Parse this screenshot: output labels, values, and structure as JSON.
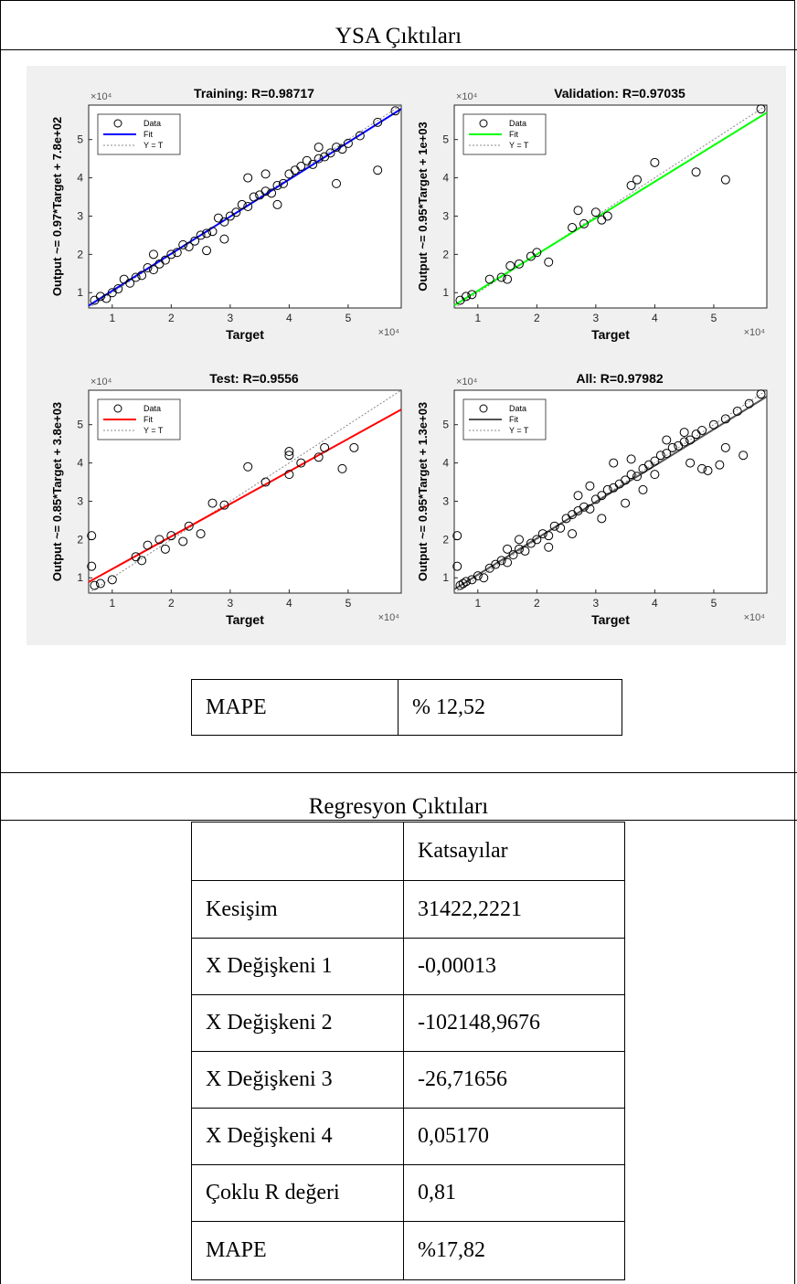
{
  "sections": {
    "ysa_title": "YSA Çıktıları",
    "regresyon_title": "Regresyon Çıktıları"
  },
  "ysa_mape": {
    "label": "MAPE",
    "value": "% 12,52"
  },
  "regresyon_table": {
    "header": [
      "",
      "Katsayılar"
    ],
    "rows": [
      [
        "Kesişim",
        "31422,2221"
      ],
      [
        "X Değişkeni 1",
        "-0,00013"
      ],
      [
        "X Değişkeni 2",
        "-102148,9676"
      ],
      [
        "X Değişkeni 3",
        "-26,71656"
      ],
      [
        "X Değişkeni 4",
        "0,05170"
      ],
      [
        "Çoklu R değeri",
        "0,81"
      ],
      [
        "MAPE",
        "%17,82"
      ]
    ]
  },
  "chart_data": [
    {
      "type": "scatter",
      "title": "Training: R=0.98717",
      "xlabel": "Target",
      "ylabel": "Output ~= 0.97*Target + 7.8e+02",
      "axis_multiplier": "×10⁴",
      "xlim": [
        0.6,
        5.9
      ],
      "ylim": [
        0.6,
        5.9
      ],
      "xticks": [
        1,
        2,
        3,
        4,
        5
      ],
      "yticks": [
        1,
        2,
        3,
        4,
        5
      ],
      "fit": {
        "slope": 0.97,
        "intercept": 0.078,
        "color": "#0000ff"
      },
      "legend": [
        "Data",
        "Fit",
        "Y = T"
      ],
      "legend_position": "top-left",
      "points": [
        [
          0.7,
          0.8
        ],
        [
          0.8,
          0.9
        ],
        [
          0.9,
          0.85
        ],
        [
          1.0,
          1.0
        ],
        [
          1.1,
          1.1
        ],
        [
          1.2,
          1.35
        ],
        [
          1.3,
          1.25
        ],
        [
          1.4,
          1.4
        ],
        [
          1.5,
          1.45
        ],
        [
          1.6,
          1.65
        ],
        [
          1.7,
          1.6
        ],
        [
          1.8,
          1.75
        ],
        [
          1.9,
          1.85
        ],
        [
          2.0,
          2.0
        ],
        [
          2.1,
          2.05
        ],
        [
          2.2,
          2.25
        ],
        [
          2.3,
          2.2
        ],
        [
          2.4,
          2.35
        ],
        [
          2.5,
          2.5
        ],
        [
          2.6,
          2.55
        ],
        [
          2.7,
          2.6
        ],
        [
          2.8,
          2.95
        ],
        [
          2.9,
          2.85
        ],
        [
          3.0,
          3.0
        ],
        [
          3.1,
          3.1
        ],
        [
          3.2,
          3.3
        ],
        [
          3.3,
          3.25
        ],
        [
          3.4,
          3.5
        ],
        [
          3.5,
          3.55
        ],
        [
          3.6,
          3.65
        ],
        [
          3.7,
          3.6
        ],
        [
          3.8,
          3.8
        ],
        [
          3.9,
          3.85
        ],
        [
          4.0,
          4.1
        ],
        [
          4.1,
          4.2
        ],
        [
          4.2,
          4.3
        ],
        [
          4.3,
          4.45
        ],
        [
          4.4,
          4.35
        ],
        [
          4.5,
          4.5
        ],
        [
          4.6,
          4.55
        ],
        [
          4.7,
          4.65
        ],
        [
          4.8,
          4.8
        ],
        [
          4.9,
          4.75
        ],
        [
          5.0,
          4.9
        ],
        [
          5.2,
          5.1
        ],
        [
          5.5,
          5.45
        ],
        [
          5.8,
          5.75
        ],
        [
          1.7,
          2.0
        ],
        [
          2.6,
          2.1
        ],
        [
          3.3,
          4.0
        ],
        [
          3.6,
          4.1
        ],
        [
          3.8,
          3.3
        ],
        [
          4.5,
          4.8
        ],
        [
          4.8,
          3.85
        ],
        [
          5.5,
          4.2
        ],
        [
          2.9,
          2.4
        ]
      ]
    },
    {
      "type": "scatter",
      "title": "Validation: R=0.97035",
      "xlabel": "Target",
      "ylabel": "Output ~= 0.95*Target + 1e+03",
      "axis_multiplier": "×10⁴",
      "xlim": [
        0.6,
        5.9
      ],
      "ylim": [
        0.6,
        5.9
      ],
      "xticks": [
        1,
        2,
        3,
        4,
        5
      ],
      "yticks": [
        1,
        2,
        3,
        4,
        5
      ],
      "fit": {
        "slope": 0.95,
        "intercept": 0.1,
        "color": "#00ff00"
      },
      "legend": [
        "Data",
        "Fit",
        "Y = T"
      ],
      "legend_position": "top-left",
      "points": [
        [
          0.7,
          0.8
        ],
        [
          0.8,
          0.9
        ],
        [
          0.9,
          0.95
        ],
        [
          1.2,
          1.35
        ],
        [
          1.4,
          1.4
        ],
        [
          1.5,
          1.35
        ],
        [
          1.55,
          1.7
        ],
        [
          1.7,
          1.75
        ],
        [
          1.9,
          1.95
        ],
        [
          2.0,
          2.05
        ],
        [
          2.2,
          1.8
        ],
        [
          2.6,
          2.7
        ],
        [
          2.7,
          3.15
        ],
        [
          2.8,
          2.8
        ],
        [
          3.0,
          3.1
        ],
        [
          3.1,
          2.9
        ],
        [
          3.2,
          3.0
        ],
        [
          3.6,
          3.8
        ],
        [
          3.7,
          3.95
        ],
        [
          4.0,
          4.4
        ],
        [
          4.7,
          4.15
        ],
        [
          5.2,
          3.95
        ],
        [
          5.8,
          5.8
        ]
      ]
    },
    {
      "type": "scatter",
      "title": "Test: R=0.9556",
      "xlabel": "Target",
      "ylabel": "Output ~= 0.85*Target + 3.8e+03",
      "axis_multiplier": "×10⁴",
      "xlim": [
        0.6,
        5.9
      ],
      "ylim": [
        0.6,
        5.9
      ],
      "xticks": [
        1,
        2,
        3,
        4,
        5
      ],
      "yticks": [
        1,
        2,
        3,
        4,
        5
      ],
      "fit": {
        "slope": 0.85,
        "intercept": 0.38,
        "color": "#ff0000"
      },
      "legend": [
        "Data",
        "Fit",
        "Y = T"
      ],
      "legend_position": "top-left",
      "points": [
        [
          0.65,
          2.1
        ],
        [
          0.65,
          1.3
        ],
        [
          0.7,
          0.8
        ],
        [
          0.8,
          0.85
        ],
        [
          1.0,
          0.95
        ],
        [
          1.4,
          1.55
        ],
        [
          1.5,
          1.45
        ],
        [
          1.6,
          1.85
        ],
        [
          1.8,
          2.0
        ],
        [
          1.9,
          1.75
        ],
        [
          2.0,
          2.1
        ],
        [
          2.2,
          1.95
        ],
        [
          2.3,
          2.35
        ],
        [
          2.5,
          2.15
        ],
        [
          2.7,
          2.95
        ],
        [
          2.9,
          2.9
        ],
        [
          3.3,
          3.9
        ],
        [
          3.6,
          3.5
        ],
        [
          4.0,
          4.2
        ],
        [
          4.0,
          3.7
        ],
        [
          4.0,
          4.3
        ],
        [
          4.2,
          4.0
        ],
        [
          4.5,
          4.15
        ],
        [
          4.6,
          4.4
        ],
        [
          4.9,
          3.85
        ],
        [
          5.1,
          4.4
        ]
      ]
    },
    {
      "type": "scatter",
      "title": "All: R=0.97982",
      "xlabel": "Target",
      "ylabel": "Output ~= 0.95*Target + 1.3e+03",
      "axis_multiplier": "×10⁴",
      "xlim": [
        0.6,
        5.9
      ],
      "ylim": [
        0.6,
        5.9
      ],
      "xticks": [
        1,
        2,
        3,
        4,
        5
      ],
      "yticks": [
        1,
        2,
        3,
        4,
        5
      ],
      "fit": {
        "slope": 0.95,
        "intercept": 0.13,
        "color": "#555555"
      },
      "legend": [
        "Data",
        "Fit",
        "Y = T"
      ],
      "legend_position": "top-left",
      "points": [
        [
          0.65,
          2.1
        ],
        [
          0.65,
          1.3
        ],
        [
          0.7,
          0.8
        ],
        [
          0.75,
          0.85
        ],
        [
          0.8,
          0.9
        ],
        [
          0.9,
          0.95
        ],
        [
          1.0,
          1.05
        ],
        [
          1.1,
          1.0
        ],
        [
          1.2,
          1.25
        ],
        [
          1.3,
          1.35
        ],
        [
          1.4,
          1.45
        ],
        [
          1.5,
          1.4
        ],
        [
          1.6,
          1.6
        ],
        [
          1.7,
          1.75
        ],
        [
          1.8,
          1.7
        ],
        [
          1.9,
          1.9
        ],
        [
          2.0,
          2.0
        ],
        [
          2.1,
          2.15
        ],
        [
          2.2,
          2.1
        ],
        [
          2.3,
          2.35
        ],
        [
          2.4,
          2.3
        ],
        [
          2.5,
          2.55
        ],
        [
          2.6,
          2.65
        ],
        [
          2.7,
          2.75
        ],
        [
          2.8,
          2.85
        ],
        [
          2.9,
          2.8
        ],
        [
          3.0,
          3.05
        ],
        [
          3.1,
          3.15
        ],
        [
          3.2,
          3.3
        ],
        [
          3.3,
          3.35
        ],
        [
          3.4,
          3.45
        ],
        [
          3.5,
          3.55
        ],
        [
          3.6,
          3.7
        ],
        [
          3.7,
          3.65
        ],
        [
          3.8,
          3.85
        ],
        [
          3.9,
          3.95
        ],
        [
          4.0,
          4.05
        ],
        [
          4.1,
          4.2
        ],
        [
          4.2,
          4.25
        ],
        [
          4.3,
          4.4
        ],
        [
          4.4,
          4.45
        ],
        [
          4.5,
          4.55
        ],
        [
          4.6,
          4.6
        ],
        [
          4.7,
          4.75
        ],
        [
          4.8,
          4.85
        ],
        [
          5.0,
          5.0
        ],
        [
          5.2,
          5.15
        ],
        [
          5.4,
          5.35
        ],
        [
          5.6,
          5.55
        ],
        [
          5.8,
          5.8
        ],
        [
          1.7,
          2.0
        ],
        [
          2.6,
          2.15
        ],
        [
          2.7,
          3.15
        ],
        [
          3.3,
          4.0
        ],
        [
          3.6,
          4.1
        ],
        [
          3.8,
          3.3
        ],
        [
          4.0,
          3.7
        ],
        [
          4.5,
          4.8
        ],
        [
          4.8,
          3.85
        ],
        [
          4.9,
          3.8
        ],
        [
          5.1,
          3.95
        ],
        [
          5.5,
          4.2
        ],
        [
          5.2,
          4.4
        ],
        [
          4.6,
          4.0
        ],
        [
          3.1,
          2.55
        ],
        [
          2.2,
          1.8
        ],
        [
          1.5,
          1.75
        ],
        [
          3.5,
          2.95
        ],
        [
          4.2,
          4.6
        ],
        [
          2.9,
          3.4
        ]
      ]
    }
  ]
}
